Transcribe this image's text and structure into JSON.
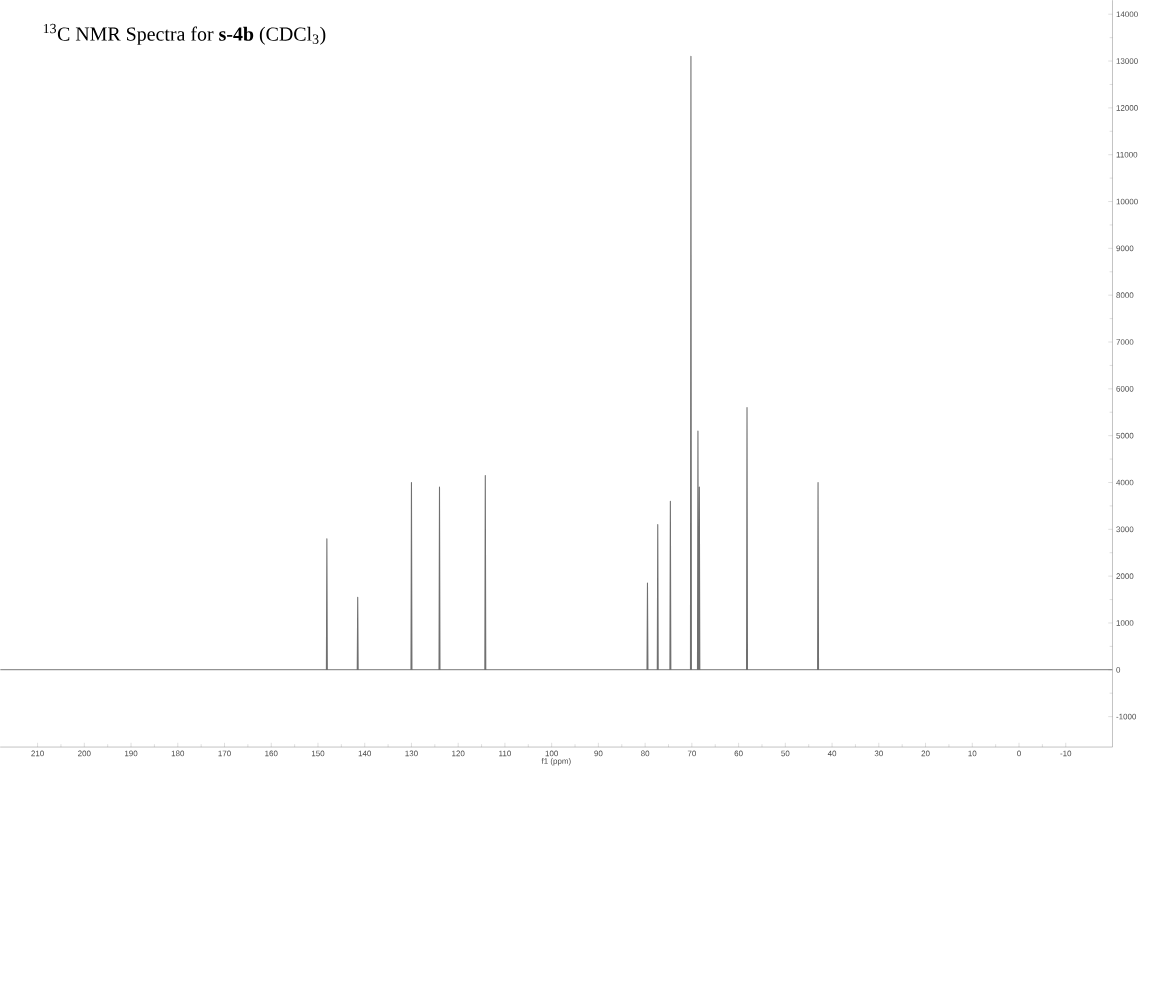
{
  "chart_data": {
    "type": "line",
    "title": "$^{13}$C NMR Spectra for **s-4b** (CDCl$_{3}$)",
    "xlabel": "f1 (ppm)",
    "x": [
      218,
      148.2,
      148.1,
      148.0,
      141.6,
      141.5,
      141.4,
      130.1,
      130.0,
      129.9,
      124.1,
      124.0,
      123.9,
      114.3,
      114.2,
      114.1,
      79.6,
      79.5,
      79.4,
      77.4,
      77.3,
      77.2,
      74.7,
      74.6,
      74.5,
      70.3,
      70.2,
      70.1,
      68.8,
      68.7,
      68.6,
      68.5,
      68.4,
      68.3,
      58.3,
      58.2,
      58.1,
      43.1,
      43.0,
      42.9,
      -20
    ],
    "values": [
      0,
      0,
      2800,
      0,
      0,
      1550,
      0,
      0,
      4000,
      0,
      0,
      3900,
      0,
      0,
      4150,
      0,
      0,
      1850,
      0,
      0,
      3100,
      0,
      0,
      3600,
      0,
      0,
      13100,
      0,
      0,
      5100,
      0,
      0,
      3900,
      0,
      0,
      5600,
      0,
      0,
      4000,
      0,
      0
    ],
    "color": "#707070",
    "xlim": [
      218,
      -20
    ],
    "ylim": [
      -1650,
      14300
    ],
    "xticks": [
      210,
      200,
      190,
      180,
      170,
      160,
      150,
      140,
      130,
      120,
      110,
      100,
      90,
      80,
      70,
      60,
      50,
      40,
      30,
      20,
      10,
      0,
      -10
    ],
    "yticks": [
      -1000,
      0,
      1000,
      2000,
      3000,
      4000,
      5000,
      6000,
      7000,
      8000,
      9000,
      10000,
      11000,
      12000,
      13000,
      14000
    ]
  }
}
